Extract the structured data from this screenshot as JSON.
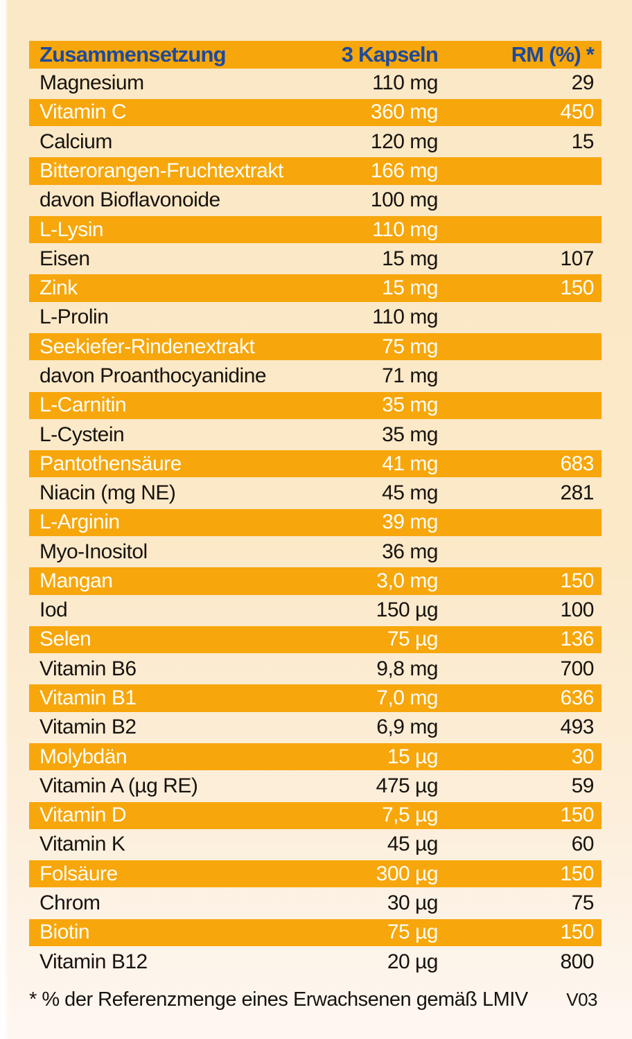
{
  "colors": {
    "orange": "#F7A60B",
    "header_blue": "#1D4A9D",
    "cream_background": "#FBE9C8",
    "ink": "#17130F",
    "white_text": "#FFFEF7"
  },
  "table": {
    "headers": {
      "composition": "Zusammensetzung",
      "dose": "3 Kapseln",
      "rm": "RM (%) *"
    },
    "rows": [
      {
        "name": "Magnesium",
        "amount": "110 mg",
        "rm": "29",
        "hl": false
      },
      {
        "name": "Vitamin C",
        "amount": "360 mg",
        "rm": "450",
        "hl": true
      },
      {
        "name": "Calcium",
        "amount": "120 mg",
        "rm": "15",
        "hl": false
      },
      {
        "name": "Bitterorangen-Fruchtextrakt",
        "amount": "166 mg",
        "rm": "",
        "hl": true
      },
      {
        "name": "davon Bioflavonoide",
        "amount": "100 mg",
        "rm": "",
        "hl": false
      },
      {
        "name": "L-Lysin",
        "amount": "110 mg",
        "rm": "",
        "hl": true
      },
      {
        "name": "Eisen",
        "amount": "15 mg",
        "rm": "107",
        "hl": false
      },
      {
        "name": "Zink",
        "amount": "15 mg",
        "rm": "150",
        "hl": true
      },
      {
        "name": "L-Prolin",
        "amount": "110 mg",
        "rm": "",
        "hl": false
      },
      {
        "name": "Seekiefer-Rindenextrakt",
        "amount": "75 mg",
        "rm": "",
        "hl": true
      },
      {
        "name": "davon Proanthocyanidine",
        "amount": "71 mg",
        "rm": "",
        "hl": false
      },
      {
        "name": "L-Carnitin",
        "amount": "35 mg",
        "rm": "",
        "hl": true
      },
      {
        "name": "L-Cystein",
        "amount": "35 mg",
        "rm": "",
        "hl": false
      },
      {
        "name": "Pantothensäure",
        "amount": "41 mg",
        "rm": "683",
        "hl": true
      },
      {
        "name": "Niacin (mg NE)",
        "amount": "45 mg",
        "rm": "281",
        "hl": false
      },
      {
        "name": "L-Arginin",
        "amount": "39 mg",
        "rm": "",
        "hl": true
      },
      {
        "name": "Myo-Inositol",
        "amount": "36 mg",
        "rm": "",
        "hl": false
      },
      {
        "name": "Mangan",
        "amount": "3,0 mg",
        "rm": "150",
        "hl": true
      },
      {
        "name": "Iod",
        "amount": "150 µg",
        "rm": "100",
        "hl": false
      },
      {
        "name": "Selen",
        "amount": "75 µg",
        "rm": "136",
        "hl": true
      },
      {
        "name": "Vitamin B6",
        "amount": "9,8 mg",
        "rm": "700",
        "hl": false
      },
      {
        "name": "Vitamin B1",
        "amount": "7,0 mg",
        "rm": "636",
        "hl": true
      },
      {
        "name": "Vitamin B2",
        "amount": "6,9 mg",
        "rm": "493",
        "hl": false
      },
      {
        "name": "Molybdän",
        "amount": "15 µg",
        "rm": "30",
        "hl": true
      },
      {
        "name": "Vitamin A (µg RE)",
        "amount": "475 µg",
        "rm": "59",
        "hl": false
      },
      {
        "name": "Vitamin D",
        "amount": "7,5 µg",
        "rm": "150",
        "hl": true
      },
      {
        "name": "Vitamin K",
        "amount": "45 µg",
        "rm": "60",
        "hl": false
      },
      {
        "name": "Folsäure",
        "amount": "300 µg",
        "rm": "150",
        "hl": true
      },
      {
        "name": "Chrom",
        "amount": "30 µg",
        "rm": "75",
        "hl": false
      },
      {
        "name": "Biotin",
        "amount": "75 µg",
        "rm": "150",
        "hl": true
      },
      {
        "name": "Vitamin B12",
        "amount": "20 µg",
        "rm": "800",
        "hl": false
      }
    ]
  },
  "footer": {
    "note": "* % der Referenzmenge eines Erwachsenen gemäß LMIV",
    "version": "V03"
  }
}
